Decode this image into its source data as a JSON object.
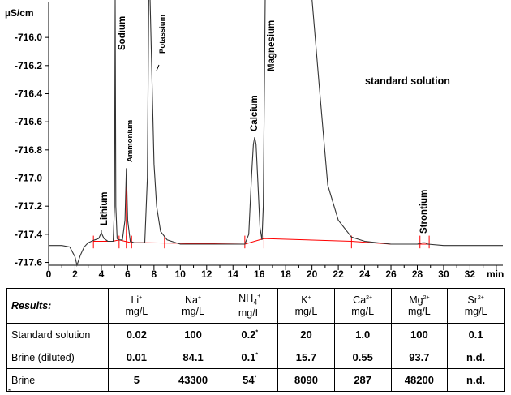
{
  "chart_data": {
    "type": "line",
    "title": "",
    "annotation": "standard solution",
    "ylabel": "µS/cm",
    "xlabel": "min",
    "xlim": [
      0,
      34.5
    ],
    "ylim": [
      -717.62,
      -715.78
    ],
    "x_ticks": [
      0,
      2,
      4,
      6,
      8,
      10,
      12,
      14,
      16,
      18,
      20,
      22,
      24,
      26,
      28,
      30,
      32
    ],
    "x_tick_labels": [
      "0",
      "2",
      "4",
      "6",
      "8",
      "10",
      "12",
      "14",
      "16",
      "18",
      "20",
      "22",
      "24",
      "26",
      "28",
      "30",
      "32"
    ],
    "y_ticks": [
      -716.0,
      -716.2,
      -716.4,
      -716.6,
      -716.8,
      -717.0,
      -717.2,
      -717.4,
      -717.6
    ],
    "y_tick_labels": [
      "-716.0",
      "-716.2",
      "-716.4",
      "-716.6",
      "-716.8",
      "-717.0",
      "-717.2",
      "-717.4",
      "-717.6"
    ],
    "peaks": [
      {
        "name": "Lithium",
        "retention_min": 4.0,
        "height": -717.39
      },
      {
        "name": "Sodium",
        "retention_min": 5.05,
        "height": -715.7
      },
      {
        "name": "Ammonium",
        "retention_min": 5.9,
        "height": -716.93
      },
      {
        "name": "Potassium",
        "retention_min": 7.7,
        "height": -715.7
      },
      {
        "name": "Calcium",
        "retention_min": 15.65,
        "height": -716.71
      },
      {
        "name": "Magnesium",
        "retention_min": 16.45,
        "height": -715.7
      },
      {
        "name": "Strontium",
        "retention_min": 28.5,
        "height": -717.46
      }
    ],
    "series": [
      {
        "color": "#333333",
        "x": [
          0,
          1.0,
          1.6,
          2.0,
          2.15,
          2.4,
          2.7,
          3.0,
          3.5,
          3.8,
          4.0,
          4.2,
          4.5,
          4.9,
          5.0,
          5.05,
          5.1,
          5.2,
          5.35,
          5.6,
          5.8,
          5.9,
          6.0,
          6.2,
          6.5,
          6.9,
          7.3,
          7.5,
          7.6,
          7.7,
          7.85,
          8.0,
          8.2,
          8.5,
          9.0,
          10.0,
          12.0,
          14.0,
          14.9,
          15.2,
          15.4,
          15.55,
          15.65,
          15.75,
          15.9,
          16.05,
          16.2,
          16.3,
          16.45,
          16.55,
          16.8,
          17.5,
          18.5,
          19.3,
          20.0,
          20.6,
          21.2,
          22.0,
          23.0,
          24.0,
          26.0,
          28.0,
          28.4,
          28.6,
          28.8,
          30.0,
          32.0,
          34.5
        ],
        "y": [
          -717.48,
          -717.48,
          -717.49,
          -717.56,
          -717.62,
          -717.55,
          -717.49,
          -717.46,
          -717.44,
          -717.43,
          -717.39,
          -717.43,
          -717.45,
          -717.45,
          -717.2,
          -715.7,
          -717.2,
          -717.43,
          -717.44,
          -717.44,
          -717.3,
          -716.93,
          -717.3,
          -717.45,
          -717.46,
          -717.46,
          -717.46,
          -717.0,
          -715.7,
          -715.7,
          -716.3,
          -716.9,
          -717.2,
          -717.38,
          -717.44,
          -717.47,
          -717.47,
          -717.47,
          -717.47,
          -717.4,
          -717.0,
          -716.76,
          -716.71,
          -716.76,
          -717.05,
          -717.35,
          -717.44,
          -717.2,
          -715.7,
          -715.7,
          -715.7,
          -715.7,
          -715.7,
          -715.7,
          -715.7,
          -716.4,
          -717.05,
          -717.3,
          -717.42,
          -717.45,
          -717.47,
          -717.47,
          -717.46,
          -717.46,
          -717.47,
          -717.48,
          -717.48,
          -717.48
        ]
      }
    ],
    "baseline": {
      "color": "#ff0000",
      "x": [
        3.4,
        4.9,
        5.35,
        5.8,
        6.3,
        7.3,
        14.9,
        16.35,
        16.3,
        23.0,
        26.0,
        28.2,
        28.9
      ],
      "y": [
        -717.45,
        -717.45,
        -717.44,
        -717.45,
        -717.46,
        -717.46,
        -717.47,
        -717.43,
        -717.43,
        -717.45,
        -717.47,
        -717.47,
        -717.47
      ]
    }
  },
  "table": {
    "header_label": "Results:",
    "columns": [
      {
        "ion": "Li",
        "charge": "+",
        "unit": "mg/L"
      },
      {
        "ion": "Na",
        "charge": "+",
        "unit": "mg/L"
      },
      {
        "ion": "NH",
        "sub": "4",
        "charge": "+",
        "unit": "mg/L"
      },
      {
        "ion": "K",
        "charge": "+",
        "unit": "mg/L"
      },
      {
        "ion": "Ca",
        "charge": "2+",
        "unit": "mg/L"
      },
      {
        "ion": "Mg",
        "charge": "2+",
        "unit": "mg/L"
      },
      {
        "ion": "Sr",
        "charge": "2+",
        "unit": "mg/L"
      }
    ],
    "rows": [
      {
        "label": "Standard solution",
        "values": [
          "0.02",
          "100",
          "0.2",
          "20",
          "1.0",
          "100",
          "0.1"
        ],
        "star_col": 2
      },
      {
        "label": "Brine (diluted)",
        "values": [
          "0.01",
          "84.1",
          "0.1",
          "15.7",
          "0.55",
          "93.7",
          "n.d."
        ],
        "star_col": 2
      },
      {
        "label": "Brine",
        "values": [
          "5",
          "43300",
          "54",
          "8090",
          "287",
          "48200",
          "n.d."
        ],
        "star_col": 2
      }
    ],
    "star": "*"
  }
}
